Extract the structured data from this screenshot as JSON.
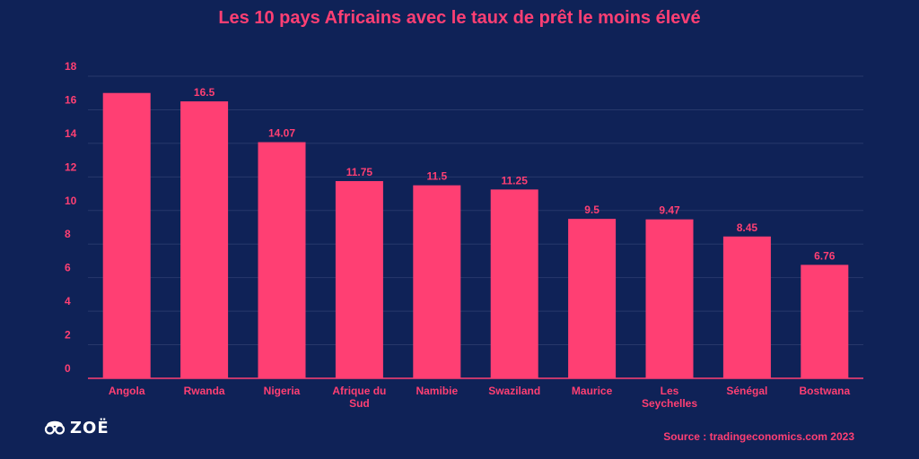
{
  "chart_data": {
    "type": "bar",
    "title": "Les 10 pays Africains avec le taux de prêt le moins élevé",
    "categories": [
      "Angola",
      "Rwanda",
      "Nigeria",
      "Afrique du Sud",
      "Namibie",
      "Swaziland",
      "Maurice",
      "Les Seychelles",
      "Sénégal",
      "Bostwana"
    ],
    "category_lines": [
      [
        "Angola"
      ],
      [
        "Rwanda"
      ],
      [
        "Nigeria"
      ],
      [
        "Afrique du",
        "Sud"
      ],
      [
        "Namibie"
      ],
      [
        "Swaziland"
      ],
      [
        "Maurice"
      ],
      [
        "Les",
        "Seychelles"
      ],
      [
        "Sénégal"
      ],
      [
        "Bostwana"
      ]
    ],
    "values": [
      17,
      16.5,
      14.07,
      11.75,
      11.5,
      11.25,
      9.5,
      9.47,
      8.45,
      6.76
    ],
    "data_labels": [
      "",
      "16.5",
      "14.07",
      "11.75",
      "11.5",
      "11.25",
      "9.5",
      "9.47",
      "8.45",
      "6.76"
    ],
    "xlabel": "",
    "ylabel": "",
    "ylim": [
      0,
      18
    ],
    "yticks": [
      0,
      2,
      4,
      6,
      8,
      10,
      12,
      14,
      16,
      18
    ],
    "grid": true,
    "legend": "none",
    "colors": {
      "bar": "#ff3f73",
      "text": "#ff3f73",
      "grid": "#27386b",
      "axis": "#ff3f73",
      "background": "#0f2257"
    }
  },
  "source": "Source : tradingeconomics.com 2023",
  "logo": {
    "text": "ZOË",
    "icon": "glasses-face-icon"
  }
}
